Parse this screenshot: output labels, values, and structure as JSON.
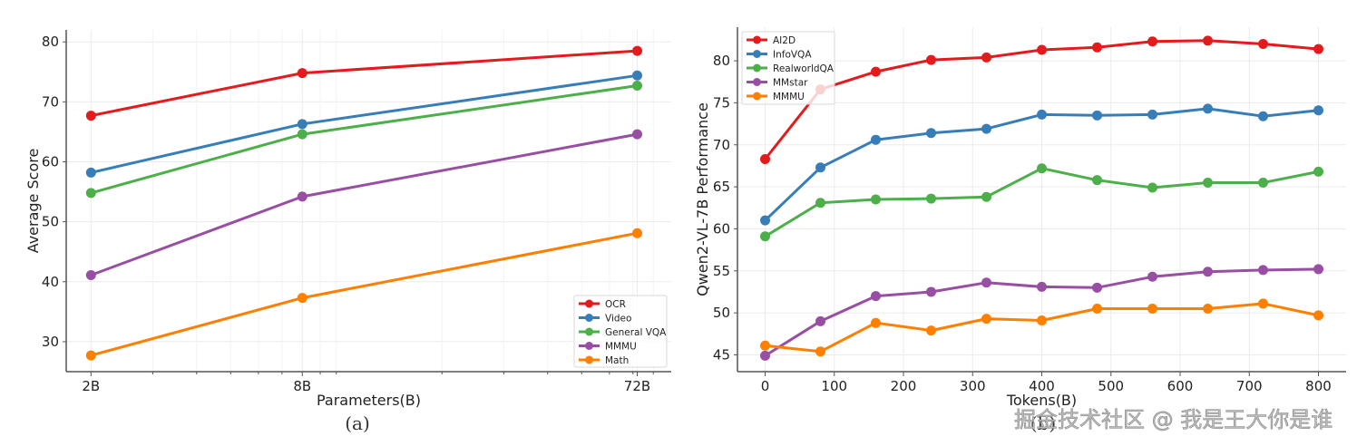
{
  "chart_data": [
    {
      "id": "a",
      "type": "line",
      "caption": "(a)",
      "title": "",
      "xlabel": "Parameters(B)",
      "ylabel": "Average Score",
      "xscale": "log",
      "x": [
        2,
        8,
        72
      ],
      "x_tick_labels": [
        "2B",
        "8B",
        "72B"
      ],
      "xlim": [
        1.7,
        90
      ],
      "ylim": [
        25,
        82
      ],
      "y_ticks": [
        30,
        40,
        50,
        60,
        70,
        80
      ],
      "grid": true,
      "legend_position": "lower-right",
      "series": [
        {
          "name": "OCR",
          "color": "#e41a1c",
          "values": [
            67.7,
            74.8,
            78.5
          ]
        },
        {
          "name": "Video",
          "color": "#377eb8",
          "values": [
            58.2,
            66.3,
            74.4
          ]
        },
        {
          "name": "General VQA",
          "color": "#4daf4a",
          "values": [
            54.8,
            64.6,
            72.7
          ]
        },
        {
          "name": "MMMU",
          "color": "#984ea3",
          "values": [
            41.1,
            54.2,
            64.6
          ]
        },
        {
          "name": "Math",
          "color": "#ff7f00",
          "values": [
            27.7,
            37.3,
            48.1
          ]
        }
      ]
    },
    {
      "id": "b",
      "type": "line",
      "caption": "(b)",
      "title": "",
      "xlabel": "Tokens(B)",
      "ylabel": "Qwen2-VL-7B Performance",
      "xscale": "linear",
      "x": [
        0,
        80,
        160,
        240,
        320,
        400,
        480,
        560,
        640,
        720,
        800
      ],
      "x_ticks": [
        0,
        100,
        200,
        300,
        400,
        500,
        600,
        700,
        800
      ],
      "xlim": [
        -40,
        840
      ],
      "ylim": [
        43,
        84
      ],
      "y_ticks": [
        45,
        50,
        55,
        60,
        65,
        70,
        75,
        80
      ],
      "grid": true,
      "legend_position": "upper-left",
      "series": [
        {
          "name": "AI2D",
          "color": "#e41a1c",
          "values": [
            68.3,
            76.6,
            78.7,
            80.1,
            80.4,
            81.3,
            81.6,
            82.3,
            82.4,
            82.0,
            81.4
          ]
        },
        {
          "name": "InfoVQA",
          "color": "#377eb8",
          "values": [
            61.0,
            67.3,
            70.6,
            71.4,
            71.9,
            73.6,
            73.5,
            73.6,
            74.3,
            73.4,
            74.1
          ]
        },
        {
          "name": "RealworldQA",
          "color": "#4daf4a",
          "values": [
            59.1,
            63.1,
            63.5,
            63.6,
            63.8,
            67.2,
            65.8,
            64.9,
            65.5,
            65.5,
            66.8
          ]
        },
        {
          "name": "MMstar",
          "color": "#984ea3",
          "values": [
            44.9,
            49.0,
            52.0,
            52.5,
            53.6,
            53.1,
            53.0,
            54.3,
            54.9,
            55.1,
            55.2
          ]
        },
        {
          "name": "MMMU",
          "color": "#ff7f00",
          "values": [
            46.1,
            45.4,
            48.8,
            47.9,
            49.3,
            49.1,
            50.5,
            50.5,
            50.5,
            51.1,
            49.7
          ]
        }
      ]
    }
  ],
  "watermark": "掘金技术社区 @ 我是王大你是谁"
}
